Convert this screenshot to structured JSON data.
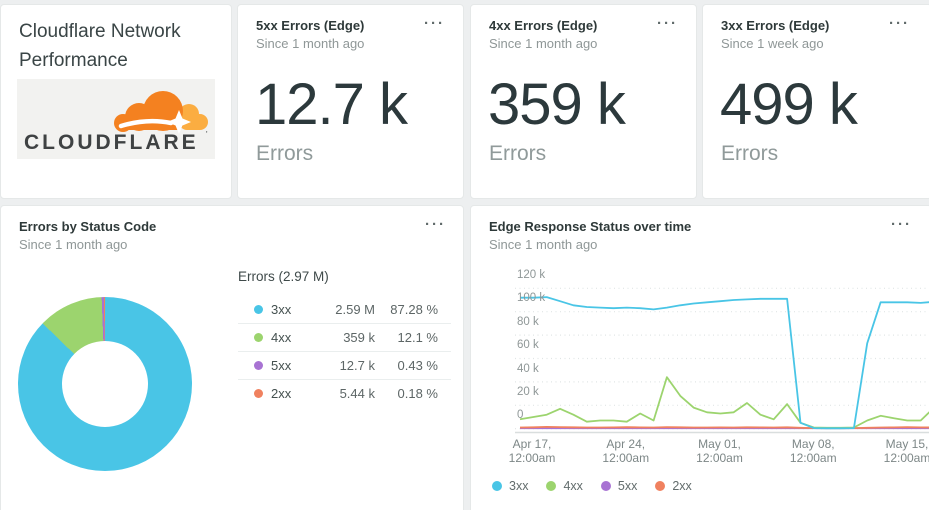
{
  "menu_glyph": "···",
  "title_card": {
    "title": "Cloudflare Network Performance",
    "logo_text": "CLOUDFLARE",
    "logo_colors": {
      "cloud": "#f48120",
      "cloud_light": "#fbad41",
      "wordmark": "#3f4243"
    }
  },
  "stat_cards": [
    {
      "title": "5xx Errors (Edge)",
      "subtitle": "Since 1 month ago",
      "value": "12.7 k",
      "unit": "Errors"
    },
    {
      "title": "4xx Errors (Edge)",
      "subtitle": "Since 1 month ago",
      "value": "359 k",
      "unit": "Errors"
    },
    {
      "title": "3xx Errors (Edge)",
      "subtitle": "Since 1 week ago",
      "value": "499 k",
      "unit": "Errors"
    }
  ],
  "pie_card": {
    "title": "Errors by Status Code",
    "subtitle": "Since 1 month ago"
  },
  "line_card": {
    "title": "Edge Response Status over time",
    "subtitle": "Since 1 month ago"
  },
  "chart_data": [
    {
      "type": "pie",
      "title": "Errors by Status Code",
      "table_header": "Errors (2.97 M)",
      "total_label": "2.97 M",
      "slices": [
        {
          "label": "3xx",
          "display_value": "2.59 M",
          "display_pct": "87.28 %",
          "value": 2590000,
          "pct": 87.28,
          "color": "#49c5e6"
        },
        {
          "label": "4xx",
          "display_value": "359 k",
          "display_pct": "12.1 %",
          "value": 359000,
          "pct": 12.1,
          "color": "#9cd46e"
        },
        {
          "label": "5xx",
          "display_value": "12.7 k",
          "display_pct": "0.43 %",
          "value": 12700,
          "pct": 0.43,
          "color": "#a873d3"
        },
        {
          "label": "2xx",
          "display_value": "5.44 k",
          "display_pct": "0.18 %",
          "value": 5440,
          "pct": 0.18,
          "color": "#f0815f"
        }
      ],
      "donut": true
    },
    {
      "type": "line",
      "title": "Edge Response Status over time",
      "unit": "k",
      "ylim": [
        0,
        120
      ],
      "grid": "dotted-horizontal",
      "legend_position": "bottom",
      "y_ticks": [
        "120 k",
        "100 k",
        "80 k",
        "60 k",
        "40 k",
        "20 k",
        "0"
      ],
      "x_ticks": [
        {
          "line1": "Apr 17,",
          "line2": "12:00am"
        },
        {
          "line1": "Apr 24,",
          "line2": "12:00am"
        },
        {
          "line1": "May 01,",
          "line2": "12:00am"
        },
        {
          "line1": "May 08,",
          "line2": "12:00am"
        },
        {
          "line1": "May 15,",
          "line2": "12:00am"
        }
      ],
      "x_dates": [
        "Apr 16",
        "Apr 17",
        "Apr 18",
        "Apr 19",
        "Apr 20",
        "Apr 21",
        "Apr 22",
        "Apr 23",
        "Apr 24",
        "Apr 25",
        "Apr 26",
        "Apr 27",
        "Apr 28",
        "Apr 29",
        "Apr 30",
        "May 01",
        "May 02",
        "May 03",
        "May 04",
        "May 05",
        "May 06",
        "May 07",
        "May 08",
        "May 09",
        "May 10",
        "May 11",
        "May 12",
        "May 13",
        "May 14",
        "May 15",
        "May 16",
        "May 17"
      ],
      "series": [
        {
          "name": "3xx",
          "color": "#49c5e6",
          "values": [
            112,
            112,
            112.5,
            109,
            105.5,
            104,
            103.5,
            103,
            103.5,
            103,
            102,
            103.5,
            105.5,
            107,
            108,
            109,
            110,
            110.5,
            111,
            111,
            111,
            5,
            0.5,
            0.3,
            0.3,
            0.5,
            73,
            108,
            108,
            108,
            107.5,
            108.5
          ]
        },
        {
          "name": "4xx",
          "color": "#9cd46e",
          "values": [
            8,
            10,
            12,
            17,
            12,
            6,
            7,
            7,
            6,
            13,
            7,
            44,
            28,
            18,
            14,
            13,
            14,
            22,
            12,
            8,
            21,
            5,
            1,
            0.8,
            0.8,
            1,
            7,
            11,
            9,
            7,
            7,
            18
          ]
        },
        {
          "name": "5xx",
          "color": "#a873d3",
          "values": [
            0.4,
            0.4,
            0.4,
            0.4,
            0.4,
            0.4,
            0.4,
            0.4,
            0.4,
            0.4,
            0.4,
            0.4,
            0.4,
            0.4,
            0.4,
            0.4,
            0.4,
            0.4,
            0.4,
            0.4,
            0.4,
            0.4,
            0.4,
            0.4,
            0.4,
            0.4,
            0.4,
            0.4,
            0.4,
            0.4,
            0.4,
            0.4
          ]
        },
        {
          "name": "2xx",
          "color": "#f0815f",
          "values": [
            1,
            1.2,
            1.5,
            1.4,
            1.2,
            1,
            1,
            1.1,
            1.3,
            1.1,
            1,
            1.4,
            1.2,
            1,
            1,
            1.1,
            1,
            1.2,
            1.1,
            1,
            1.2,
            0.8,
            0.5,
            0.4,
            0.4,
            0.5,
            0.8,
            1,
            1.1,
            1.4,
            1.1,
            1
          ]
        }
      ],
      "draw_order": [
        "5xx",
        "2xx",
        "4xx",
        "3xx"
      ]
    }
  ]
}
